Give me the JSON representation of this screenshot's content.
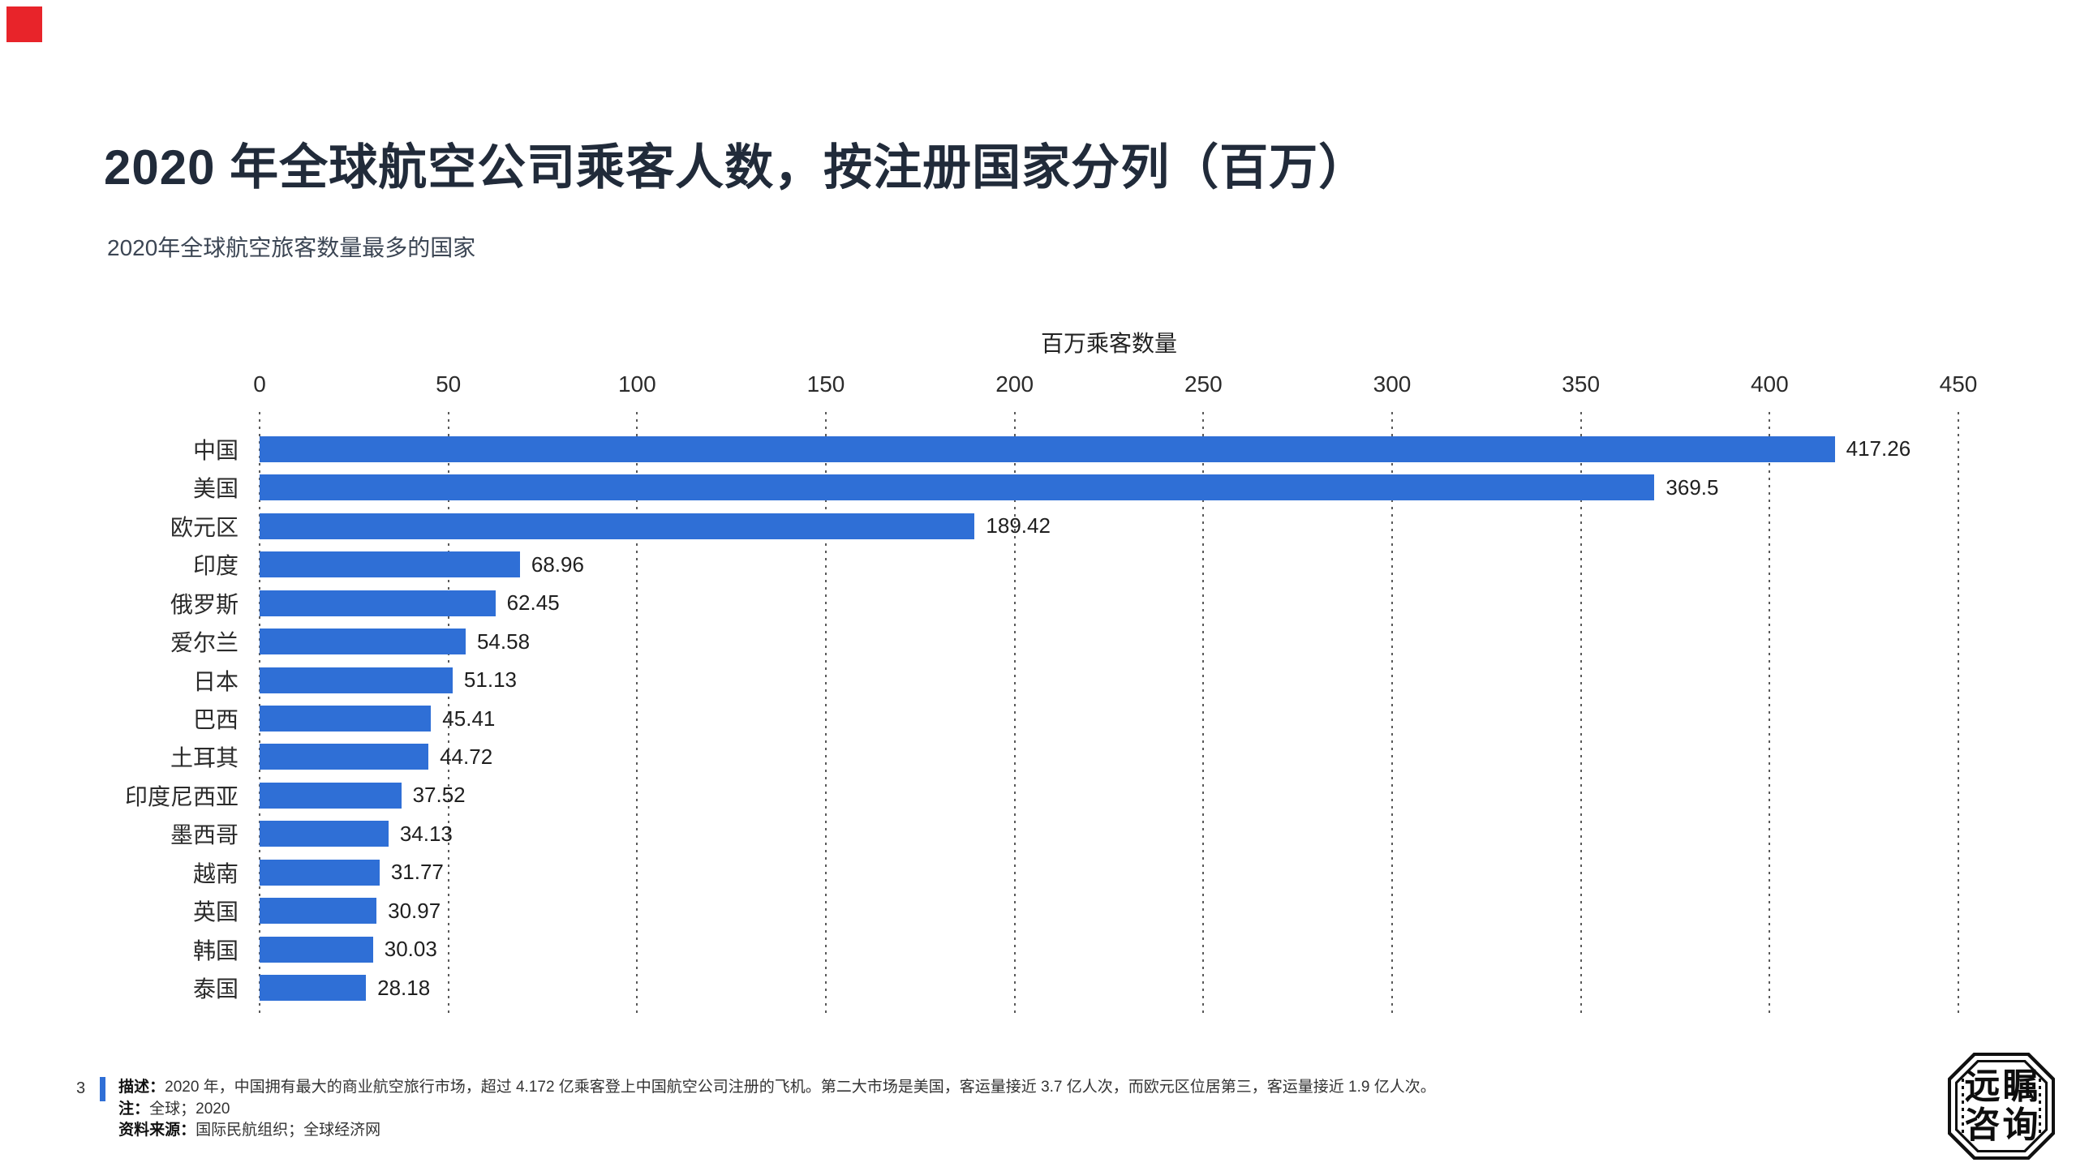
{
  "page": {
    "title": "2020 年全球航空公司乘客人数，按注册国家分列（百万）",
    "subtitle": "2020年全球航空旅客数量最多的国家",
    "page_number": "3",
    "accent_red": "#e8242a",
    "accent_blue": "#2f6fd6"
  },
  "chart_data": {
    "type": "bar",
    "orientation": "horizontal",
    "title": "2020 年全球航空公司乘客人数，按注册国家分列（百万）",
    "subtitle": "2020年全球航空旅客数量最多的国家",
    "xlabel": "百万乘客数量",
    "ylabel": "",
    "xlim": [
      0,
      450
    ],
    "xticks": [
      0,
      50,
      100,
      150,
      200,
      250,
      300,
      350,
      400,
      450
    ],
    "grid": "dotted-vertical",
    "legend": "none",
    "bar_color": "#2f6fd6",
    "categories": [
      "中国",
      "美国",
      "欧元区",
      "印度",
      "俄罗斯",
      "爱尔兰",
      "日本",
      "巴西",
      "土耳其",
      "印度尼西亚",
      "墨西哥",
      "越南",
      "英国",
      "韩国",
      "泰国"
    ],
    "values": [
      417.26,
      369.5,
      189.42,
      68.96,
      62.45,
      54.58,
      51.13,
      45.41,
      44.72,
      37.52,
      34.13,
      31.77,
      30.97,
      30.03,
      28.18
    ],
    "value_labels": [
      "417.26",
      "369.5",
      "189.42",
      "68.96",
      "62.45",
      "54.58",
      "51.13",
      "45.41",
      "44.72",
      "37.52",
      "34.13",
      "31.77",
      "30.97",
      "30.03",
      "28.18"
    ]
  },
  "footer": {
    "desc_label": "描述：",
    "desc_text": "2020 年，中国拥有最大的商业航空旅行市场，超过 4.172 亿乘客登上中国航空公司注册的飞机。第二大市场是美国，客运量接近 3.7 亿人次，而欧元区位居第三，客运量接近 1.9 亿人次。",
    "note_label": "注：",
    "note_text": "全球；2020",
    "source_label": "资料来源：",
    "source_text": "国际民航组织；全球经济网"
  },
  "logo": {
    "line1": "远瞩",
    "line2": "咨询"
  }
}
